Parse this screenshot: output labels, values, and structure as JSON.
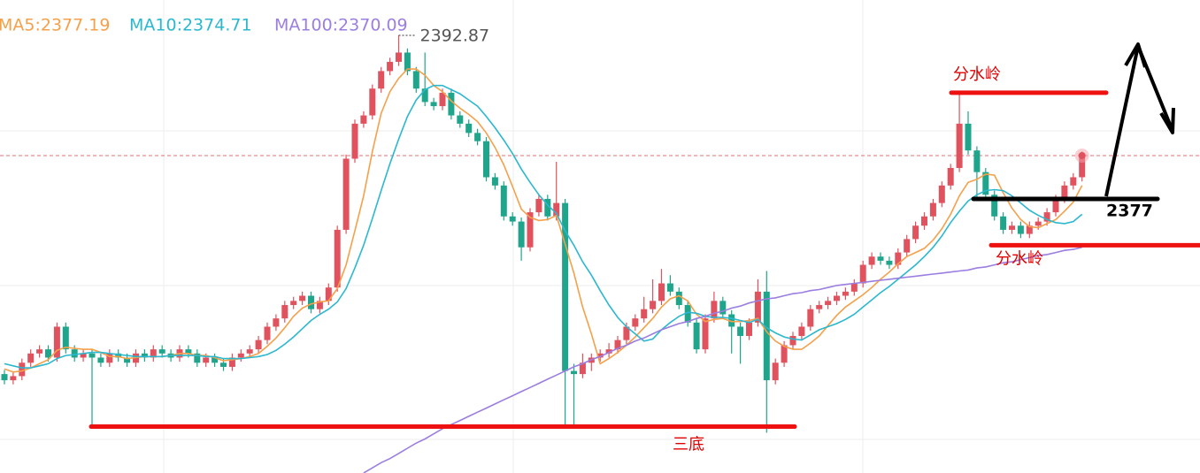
{
  "chart_data": {
    "type": "candlestick",
    "ylim": [
      2350.4,
      2396.3
    ],
    "up_color": "#e0525e",
    "down_color": "#1fa58b",
    "candles": [
      [
        2360.0,
        2360.4,
        2359.0,
        2359.4
      ],
      [
        2359.4,
        2360.2,
        2359.0,
        2359.8
      ],
      [
        2359.8,
        2361.5,
        2359.4,
        2361.1
      ],
      [
        2361.1,
        2362.4,
        2360.7,
        2362.0
      ],
      [
        2362.0,
        2362.8,
        2361.6,
        2362.4
      ],
      [
        2362.4,
        2362.8,
        2361.2,
        2361.6
      ],
      [
        2361.6,
        2365.0,
        2361.2,
        2364.6
      ],
      [
        2364.6,
        2365.0,
        2362.0,
        2362.4
      ],
      [
        2362.4,
        2362.8,
        2361.2,
        2361.6
      ],
      [
        2361.6,
        2362.4,
        2361.2,
        2362.0
      ],
      [
        2362.0,
        2362.4,
        2355.1,
        2361.6
      ],
      [
        2361.6,
        2362.0,
        2360.7,
        2361.1
      ],
      [
        2361.1,
        2362.4,
        2360.7,
        2362.0
      ],
      [
        2362.0,
        2362.4,
        2361.2,
        2361.6
      ],
      [
        2361.6,
        2362.0,
        2360.7,
        2361.1
      ],
      [
        2361.1,
        2362.4,
        2360.7,
        2362.0
      ],
      [
        2362.0,
        2362.4,
        2361.2,
        2361.6
      ],
      [
        2361.6,
        2362.8,
        2361.2,
        2362.4
      ],
      [
        2362.4,
        2362.8,
        2361.6,
        2362.0
      ],
      [
        2362.0,
        2362.4,
        2361.2,
        2361.6
      ],
      [
        2361.6,
        2362.8,
        2361.2,
        2362.4
      ],
      [
        2362.4,
        2362.8,
        2361.6,
        2362.0
      ],
      [
        2362.0,
        2362.4,
        2360.7,
        2361.1
      ],
      [
        2361.1,
        2362.0,
        2360.7,
        2361.6
      ],
      [
        2361.6,
        2362.0,
        2360.7,
        2361.1
      ],
      [
        2361.1,
        2361.5,
        2360.3,
        2360.7
      ],
      [
        2360.7,
        2362.0,
        2360.3,
        2361.6
      ],
      [
        2361.6,
        2362.4,
        2361.2,
        2362.0
      ],
      [
        2362.0,
        2362.8,
        2361.6,
        2362.4
      ],
      [
        2362.4,
        2363.7,
        2362.0,
        2363.3
      ],
      [
        2363.3,
        2365.0,
        2362.9,
        2364.6
      ],
      [
        2364.6,
        2365.8,
        2364.2,
        2365.4
      ],
      [
        2365.4,
        2367.1,
        2365.0,
        2366.7
      ],
      [
        2366.7,
        2367.5,
        2366.3,
        2367.1
      ],
      [
        2367.1,
        2368.0,
        2366.7,
        2367.6
      ],
      [
        2367.6,
        2368.0,
        2365.9,
        2366.3
      ],
      [
        2366.3,
        2367.5,
        2365.9,
        2367.1
      ],
      [
        2367.1,
        2368.8,
        2366.7,
        2368.4
      ],
      [
        2368.4,
        2374.4,
        2368.0,
        2374.0
      ],
      [
        2374.0,
        2381.3,
        2373.6,
        2380.9
      ],
      [
        2380.9,
        2384.7,
        2380.5,
        2384.3
      ],
      [
        2384.3,
        2385.5,
        2383.9,
        2385.1
      ],
      [
        2385.1,
        2388.1,
        2384.7,
        2387.7
      ],
      [
        2387.7,
        2389.8,
        2387.3,
        2389.4
      ],
      [
        2389.4,
        2390.7,
        2389.0,
        2390.3
      ],
      [
        2390.3,
        2392.87,
        2389.9,
        2391.2
      ],
      [
        2391.2,
        2391.6,
        2389.0,
        2389.4
      ],
      [
        2389.4,
        2389.8,
        2387.3,
        2387.7
      ],
      [
        2387.7,
        2391.2,
        2386.0,
        2386.4
      ],
      [
        2386.4,
        2386.8,
        2385.6,
        2386.0
      ],
      [
        2386.0,
        2387.7,
        2385.6,
        2387.3
      ],
      [
        2387.3,
        2387.7,
        2384.7,
        2385.1
      ],
      [
        2385.1,
        2385.5,
        2383.9,
        2384.3
      ],
      [
        2384.3,
        2384.7,
        2383.0,
        2383.4
      ],
      [
        2383.4,
        2383.8,
        2382.2,
        2382.6
      ],
      [
        2382.6,
        2383.0,
        2378.7,
        2379.1
      ],
      [
        2379.1,
        2379.5,
        2377.9,
        2378.3
      ],
      [
        2378.3,
        2378.7,
        2374.9,
        2375.3
      ],
      [
        2375.3,
        2375.7,
        2374.4,
        2374.8
      ],
      [
        2374.8,
        2375.2,
        2371.0,
        2372.3
      ],
      [
        2372.3,
        2376.1,
        2371.9,
        2375.7
      ],
      [
        2375.7,
        2377.4,
        2375.3,
        2377.0
      ],
      [
        2377.0,
        2377.4,
        2374.9,
        2375.3
      ],
      [
        2375.3,
        2380.6,
        2374.9,
        2376.6
      ],
      [
        2376.6,
        2377.0,
        2355.1,
        2360.3
      ],
      [
        2360.3,
        2361.0,
        2355.1,
        2360.0
      ],
      [
        2360.0,
        2362.0,
        2359.6,
        2361.1
      ],
      [
        2361.1,
        2362.0,
        2360.3,
        2361.6
      ],
      [
        2361.6,
        2362.4,
        2361.2,
        2362.0
      ],
      [
        2362.0,
        2363.0,
        2361.6,
        2362.4
      ],
      [
        2362.4,
        2363.7,
        2362.0,
        2363.3
      ],
      [
        2363.3,
        2365.0,
        2362.9,
        2364.6
      ],
      [
        2364.6,
        2365.8,
        2364.2,
        2365.4
      ],
      [
        2365.4,
        2367.5,
        2365.0,
        2366.3
      ],
      [
        2366.3,
        2369.2,
        2365.9,
        2367.1
      ],
      [
        2367.1,
        2370.2,
        2366.7,
        2368.8
      ],
      [
        2368.8,
        2369.6,
        2367.6,
        2368.0
      ],
      [
        2368.0,
        2368.4,
        2366.3,
        2366.7
      ],
      [
        2366.7,
        2367.1,
        2364.6,
        2365.0
      ],
      [
        2365.0,
        2365.4,
        2362.0,
        2362.4
      ],
      [
        2362.4,
        2365.8,
        2362.0,
        2365.4
      ],
      [
        2365.4,
        2368.0,
        2365.0,
        2367.1
      ],
      [
        2367.1,
        2367.5,
        2365.4,
        2365.8
      ],
      [
        2365.8,
        2366.2,
        2362.0,
        2364.6
      ],
      [
        2364.6,
        2365.0,
        2361.0,
        2363.7
      ],
      [
        2363.7,
        2365.4,
        2363.3,
        2365.0
      ],
      [
        2365.0,
        2369.2,
        2364.6,
        2368.0
      ],
      [
        2368.0,
        2370.0,
        2354.3,
        2359.4
      ],
      [
        2359.4,
        2361.5,
        2359.0,
        2361.1
      ],
      [
        2361.1,
        2363.2,
        2360.7,
        2362.8
      ],
      [
        2362.8,
        2364.1,
        2362.4,
        2363.7
      ],
      [
        2363.7,
        2365.0,
        2363.3,
        2364.6
      ],
      [
        2364.6,
        2366.7,
        2364.2,
        2366.3
      ],
      [
        2366.3,
        2367.1,
        2365.9,
        2366.7
      ],
      [
        2366.7,
        2367.5,
        2366.3,
        2367.1
      ],
      [
        2367.1,
        2368.0,
        2366.7,
        2367.6
      ],
      [
        2367.6,
        2368.4,
        2367.2,
        2368.0
      ],
      [
        2368.0,
        2369.2,
        2367.6,
        2368.8
      ],
      [
        2368.8,
        2371.0,
        2368.4,
        2370.6
      ],
      [
        2370.6,
        2371.8,
        2370.2,
        2371.4
      ],
      [
        2371.4,
        2371.8,
        2370.6,
        2371.0
      ],
      [
        2371.0,
        2371.4,
        2370.2,
        2370.6
      ],
      [
        2370.6,
        2372.2,
        2370.2,
        2371.8
      ],
      [
        2371.8,
        2373.5,
        2371.4,
        2373.1
      ],
      [
        2373.1,
        2374.8,
        2372.7,
        2374.4
      ],
      [
        2374.4,
        2375.7,
        2374.0,
        2375.3
      ],
      [
        2375.3,
        2377.0,
        2374.9,
        2376.6
      ],
      [
        2376.6,
        2378.7,
        2376.2,
        2378.3
      ],
      [
        2378.3,
        2380.4,
        2377.9,
        2380.0
      ],
      [
        2380.0,
        2387.3,
        2379.6,
        2384.3
      ],
      [
        2384.3,
        2385.5,
        2381.3,
        2381.7
      ],
      [
        2381.7,
        2382.1,
        2377.0,
        2379.6
      ],
      [
        2379.6,
        2380.0,
        2377.0,
        2377.4
      ],
      [
        2377.4,
        2377.8,
        2374.9,
        2375.3
      ],
      [
        2375.3,
        2375.7,
        2373.6,
        2374.0
      ],
      [
        2374.0,
        2374.8,
        2373.6,
        2374.4
      ],
      [
        2374.4,
        2374.8,
        2373.2,
        2373.6
      ],
      [
        2373.6,
        2374.8,
        2373.2,
        2374.4
      ],
      [
        2374.4,
        2375.2,
        2374.0,
        2374.8
      ],
      [
        2374.8,
        2376.1,
        2374.4,
        2375.7
      ],
      [
        2375.7,
        2377.4,
        2375.3,
        2377.0
      ],
      [
        2377.0,
        2378.7,
        2376.6,
        2378.3
      ],
      [
        2378.3,
        2379.5,
        2377.9,
        2379.1
      ],
      [
        2379.1,
        2381.6,
        2378.7,
        2381.2
      ]
    ],
    "series": [
      {
        "name": "MA5:2377.19",
        "color": "#f5a04a",
        "values": [
          2360.5,
          2360.2,
          2360.3,
          2360.6,
          2361.0,
          2361.4,
          2362.3,
          2362.6,
          2362.5,
          2362.4,
          2362.4,
          2362.1,
          2361.7,
          2361.7,
          2361.5,
          2361.6,
          2361.7,
          2361.7,
          2361.7,
          2361.8,
          2362.0,
          2362.0,
          2361.8,
          2361.8,
          2361.6,
          2361.3,
          2361.4,
          2361.5,
          2361.7,
          2362.0,
          2362.7,
          2363.5,
          2364.5,
          2365.6,
          2366.4,
          2366.8,
          2367.0,
          2367.1,
          2368.3,
          2370.6,
          2373.9,
          2377.3,
          2381.6,
          2385.3,
          2387.4,
          2388.7,
          2389.6,
          2389.6,
          2389.0,
          2388.0,
          2387.4,
          2386.5,
          2385.8,
          2385.2,
          2384.5,
          2383.4,
          2382.0,
          2380.3,
          2378.2,
          2376.0,
          2375.2,
          2374.9,
          2375.0,
          2375.4,
          2372.6,
          2369.8,
          2366.5,
          2363.9,
          2361.0,
          2361.5,
          2362.1,
          2362.8,
          2363.6,
          2364.5,
          2365.4,
          2366.5,
          2367.3,
          2367.6,
          2367.1,
          2365.8,
          2365.1,
          2365.3,
          2365.4,
          2365.1,
          2365.1,
          2365.2,
          2365.4,
          2364.1,
          2363.2,
          2362.7,
          2362.4,
          2362.4,
          2363.0,
          2363.7,
          2364.7,
          2365.7,
          2366.5,
          2367.1,
          2367.7,
          2368.4,
          2369.2,
          2369.9,
          2370.7,
          2371.4,
          2371.8,
          2372.2,
          2373.0,
          2374.1,
          2375.5,
          2377.3,
          2378.6,
          2378.9,
          2379.4,
          2379.3,
          2377.6,
          2376.1,
          2375.0,
          2374.3,
          2374.2,
          2374.6,
          2375.0,
          2375.8,
          2376.7,
          2378.3
        ]
      },
      {
        "name": "MA10:2374.71",
        "color": "#2bb8cf",
        "values": [
          2361.0,
          2360.8,
          2360.6,
          2360.6,
          2360.8,
          2361.0,
          2361.5,
          2361.8,
          2361.9,
          2362.0,
          2362.1,
          2362.1,
          2362.0,
          2361.9,
          2361.8,
          2361.7,
          2361.7,
          2361.7,
          2361.7,
          2361.8,
          2361.8,
          2361.8,
          2361.8,
          2361.7,
          2361.7,
          2361.5,
          2361.5,
          2361.5,
          2361.6,
          2361.7,
          2361.9,
          2362.3,
          2362.9,
          2363.6,
          2364.4,
          2365.2,
          2365.8,
          2366.3,
          2367.0,
          2368.3,
          2370.3,
          2372.5,
          2375.1,
          2377.8,
          2380.4,
          2382.8,
          2385.0,
          2386.6,
          2387.6,
          2388.0,
          2388.0,
          2387.6,
          2387.2,
          2386.6,
          2386.0,
          2385.0,
          2383.9,
          2382.7,
          2381.4,
          2379.9,
          2378.6,
          2377.4,
          2376.4,
          2375.6,
          2373.9,
          2372.5,
          2370.9,
          2369.6,
          2368.1,
          2366.7,
          2365.5,
          2364.6,
          2363.9,
          2363.2,
          2363.4,
          2364.3,
          2365.0,
          2365.6,
          2366.0,
          2365.9,
          2365.6,
          2365.5,
          2365.5,
          2365.4,
          2365.2,
          2365.0,
          2365.3,
          2364.5,
          2364.0,
          2363.6,
          2363.4,
          2363.3,
          2363.8,
          2364.3,
          2364.6,
          2364.9,
          2365.3,
          2365.8,
          2366.5,
          2367.2,
          2367.9,
          2368.5,
          2369.2,
          2369.9,
          2370.6,
          2371.4,
          2372.3,
          2373.4,
          2374.7,
          2375.8,
          2376.8,
          2377.4,
          2377.8,
          2377.9,
          2377.8,
          2377.3,
          2376.6,
          2375.9,
          2375.4,
          2375.0,
          2374.7,
          2374.6,
          2374.8,
          2375.5
        ]
      },
      {
        "name": "MA100:2370.09",
        "color": "#9b7ee0",
        "values": [
          null,
          null,
          null,
          null,
          null,
          null,
          null,
          null,
          null,
          null,
          null,
          null,
          null,
          null,
          null,
          null,
          null,
          null,
          null,
          null,
          null,
          null,
          null,
          null,
          null,
          null,
          null,
          null,
          null,
          null,
          null,
          null,
          null,
          null,
          null,
          null,
          null,
          null,
          null,
          null,
          null,
          2350.4,
          2350.9,
          2351.4,
          2351.8,
          2352.3,
          2352.8,
          2353.3,
          2353.7,
          2354.2,
          2354.7,
          2355.1,
          2355.5,
          2355.9,
          2356.3,
          2356.7,
          2357.1,
          2357.5,
          2357.9,
          2358.3,
          2358.7,
          2359.1,
          2359.5,
          2359.9,
          2360.3,
          2360.7,
          2361.0,
          2361.4,
          2361.7,
          2362.1,
          2362.5,
          2362.8,
          2363.2,
          2363.5,
          2363.9,
          2364.3,
          2364.6,
          2364.9,
          2365.1,
          2365.4,
          2365.6,
          2365.9,
          2366.1,
          2366.4,
          2366.6,
          2366.9,
          2367.1,
          2367.3,
          2367.4,
          2367.6,
          2367.8,
          2367.9,
          2368.1,
          2368.2,
          2368.4,
          2368.6,
          2368.7,
          2368.8,
          2368.9,
          2369.0,
          2369.1,
          2369.2,
          2369.3,
          2369.4,
          2369.5,
          2369.6,
          2369.7,
          2369.8,
          2369.9,
          2370.0,
          2370.1,
          2370.3,
          2370.4,
          2370.6,
          2370.8,
          2370.9,
          2371.1,
          2371.3,
          2371.5,
          2371.6,
          2371.8,
          2372.0,
          2372.1,
          2372.3
        ]
      }
    ],
    "levels": [
      {
        "label": "分水岭",
        "value": 2387.3,
        "color": "#ee1111"
      },
      {
        "label": "分水岭",
        "value": 2372.5,
        "color": "#ee1111"
      },
      {
        "label": "三底",
        "value": 2354.9,
        "color": "#ee1111"
      },
      {
        "value": 2377,
        "color": "#000000"
      }
    ]
  }
}
